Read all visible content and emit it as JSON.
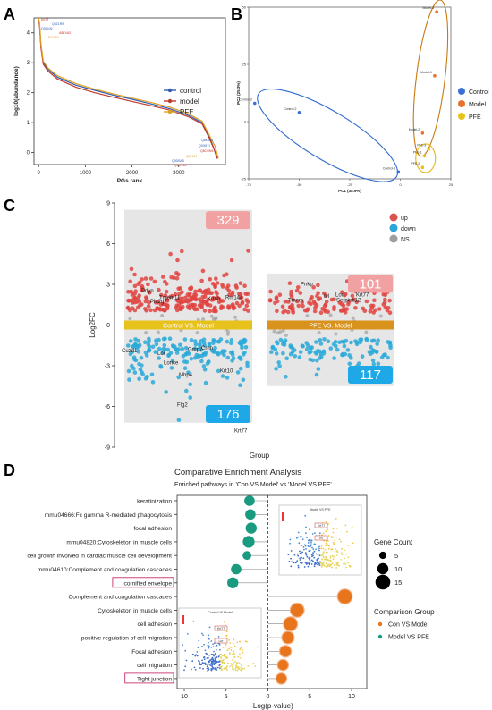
{
  "panels": {
    "A": "A",
    "B": "B",
    "C": "C",
    "D": "D"
  },
  "chart_data": [
    {
      "panel": "A",
      "type": "line",
      "title": "",
      "xlabel": "PGs rank",
      "ylabel": "log10(abundance)",
      "xlim": [
        -100,
        4000
      ],
      "ylim": [
        -0.4,
        4.5
      ],
      "x_ticks": [
        0,
        1000,
        2000,
        3000
      ],
      "y_ticks": [
        0,
        1,
        2,
        3,
        4
      ],
      "legend_position": "center-right",
      "series": [
        {
          "name": "control",
          "color": "#2f5fb3",
          "points": [
            [
              0,
              4.45
            ],
            [
              20,
              4.25
            ],
            [
              50,
              3.55
            ],
            [
              100,
              3.0
            ],
            [
              200,
              2.78
            ],
            [
              400,
              2.52
            ],
            [
              800,
              2.25
            ],
            [
              1200,
              2.08
            ],
            [
              1600,
              1.92
            ],
            [
              2000,
              1.78
            ],
            [
              2400,
              1.63
            ],
            [
              2800,
              1.47
            ],
            [
              3200,
              1.25
            ],
            [
              3500,
              1.0
            ],
            [
              3650,
              0.55
            ],
            [
              3750,
              0.15
            ],
            [
              3820,
              -0.2
            ]
          ]
        },
        {
          "name": "model",
          "color": "#c0392b",
          "points": [
            [
              0,
              4.45
            ],
            [
              20,
              4.22
            ],
            [
              50,
              3.5
            ],
            [
              100,
              2.95
            ],
            [
              200,
              2.72
            ],
            [
              400,
              2.46
            ],
            [
              800,
              2.18
            ],
            [
              1200,
              2.0
            ],
            [
              1600,
              1.85
            ],
            [
              2000,
              1.71
            ],
            [
              2400,
              1.57
            ],
            [
              2800,
              1.42
            ],
            [
              3200,
              1.2
            ],
            [
              3500,
              0.96
            ],
            [
              3650,
              0.5
            ],
            [
              3760,
              0.1
            ],
            [
              3830,
              -0.2
            ]
          ]
        },
        {
          "name": "PFE",
          "color": "#e0a020",
          "points": [
            [
              0,
              4.5
            ],
            [
              20,
              4.3
            ],
            [
              50,
              3.62
            ],
            [
              100,
              3.05
            ],
            [
              200,
              2.82
            ],
            [
              400,
              2.57
            ],
            [
              800,
              2.3
            ],
            [
              1200,
              2.12
            ],
            [
              1600,
              1.96
            ],
            [
              2000,
              1.82
            ],
            [
              2400,
              1.68
            ],
            [
              2800,
              1.52
            ],
            [
              3200,
              1.3
            ],
            [
              3500,
              1.05
            ],
            [
              3650,
              0.6
            ],
            [
              3780,
              0.2
            ],
            [
              3850,
              -0.2
            ]
          ]
        }
      ],
      "annotations_top": [
        "Krt77",
        "Q9Z1R9",
        "Q9Z0J6",
        "A8EVA3",
        "P11087"
      ],
      "annotations_bottom": [
        "Q8K4P1",
        "Q9JM71",
        "Q8CGN5",
        "Q61147",
        "Q9DBA5",
        "Q8R1M2"
      ]
    },
    {
      "panel": "B",
      "type": "scatter",
      "title": "",
      "xlabel": "PC1 (38.9%)",
      "ylabel": "PC2 (25.3%)",
      "xlim": [
        -75,
        25
      ],
      "ylim": [
        -25,
        50
      ],
      "x_ticks": [
        -75,
        -50,
        -25,
        0,
        25
      ],
      "y_ticks": [
        -25,
        0,
        25,
        50
      ],
      "legend_position": "right",
      "series": [
        {
          "name": "Control",
          "color": "#3a6fd8",
          "points": [
            {
              "label": "Control-3",
              "x": -72,
              "y": 8
            },
            {
              "label": "Control-2",
              "x": -50,
              "y": 4
            },
            {
              "label": "Control-1",
              "x": -1,
              "y": -22
            }
          ]
        },
        {
          "name": "Model",
          "color": "#e8712e",
          "points": [
            {
              "label": "Model-3",
              "x": 18,
              "y": 48
            },
            {
              "label": "Model-1",
              "x": 17,
              "y": 20
            },
            {
              "label": "Model-2",
              "x": 11,
              "y": -5
            }
          ]
        },
        {
          "name": "PFE",
          "color": "#e8c21c",
          "points": [
            {
              "label": "PFE-1",
              "x": 12,
              "y": -15
            },
            {
              "label": "PFE-3",
              "x": 14,
              "y": -12
            },
            {
              "label": "PFE-2",
              "x": 11,
              "y": -20
            }
          ]
        }
      ]
    },
    {
      "panel": "C",
      "type": "scatter",
      "title": "",
      "xlabel": "Group",
      "ylabel": "Log2FC",
      "ylim": [
        -9,
        9
      ],
      "y_ticks": [
        -9,
        -6,
        -3,
        0,
        3,
        6,
        9
      ],
      "legend_position": "top-right",
      "legend": [
        {
          "name": "up",
          "color": "#d9534f"
        },
        {
          "name": "down",
          "color": "#2ba6d6"
        },
        {
          "name": "NS",
          "color": "#9e9e9e"
        }
      ],
      "groups": [
        {
          "name": "Control VS. Model",
          "up_count": "329",
          "down_count": "176",
          "band_color": "#e8c21c",
          "y_max": 8.5,
          "y_min": -7.2
        },
        {
          "name": "PFE VS. Model",
          "up_count": "101",
          "down_count": "117",
          "band_color": "#d9921c",
          "y_max": 3.8,
          "y_min": -4.5
        }
      ],
      "labels": [
        {
          "group": 0,
          "text": "Pdyn",
          "y": 2.4
        },
        {
          "group": 0,
          "text": "Tmem11",
          "y": 1.9
        },
        {
          "group": 0,
          "text": "Pla2g7",
          "y": 1.6
        },
        {
          "group": 0,
          "text": "Krt6b",
          "y": 1.8
        },
        {
          "group": 0,
          "text": "Rnf144",
          "y": 1.9
        },
        {
          "group": 0,
          "text": "Cuzd1",
          "y": -2.0
        },
        {
          "group": 0,
          "text": "Lor",
          "y": -2.2
        },
        {
          "group": 0,
          "text": "Gmp7",
          "y": -1.9
        },
        {
          "group": 0,
          "text": "Crnn",
          "y": -1.8
        },
        {
          "group": 0,
          "text": "Krt10",
          "y": -3.5
        },
        {
          "group": 0,
          "text": "Lorice",
          "y": -2.9
        },
        {
          "group": 0,
          "text": "Mbp4",
          "y": -3.8
        },
        {
          "group": 0,
          "text": "Flg2",
          "y": -6.0
        },
        {
          "group": 0,
          "text": "Krt77",
          "y": -7.9
        },
        {
          "group": 1,
          "text": "Pnkp",
          "y": 2.9
        },
        {
          "group": 1,
          "text": "Tmem",
          "y": 1.7
        },
        {
          "group": 1,
          "text": "Ivl",
          "y": 2.0
        },
        {
          "group": 1,
          "text": "Lor",
          "y": 2.1
        },
        {
          "group": 1,
          "text": "Serpinb12",
          "y": 1.7
        },
        {
          "group": 1,
          "text": "Krt77",
          "y": 2.1
        }
      ]
    },
    {
      "panel": "D",
      "type": "scatter",
      "title": "Comparative Enrichment Analysis",
      "subtitle": "Enriched pathways in 'Con VS Model' vs 'Model VS PFE'",
      "xlabel": "-Log(p-value)",
      "xlim": [
        11,
        -10.5
      ],
      "x_ticks": [
        10,
        5,
        0,
        5,
        10
      ],
      "legend_size_title": "Gene Count",
      "legend_size_values": [
        "5",
        "10",
        "15"
      ],
      "legend_color_title": "Comparison Group",
      "legend_color_items": [
        {
          "name": "Con VS Model",
          "color": "#e8741c"
        },
        {
          "name": "Model VS PFE",
          "color": "#1a9a7f"
        }
      ],
      "inset_top_title": "Model VS PFE",
      "inset_bottom_title": "Control VS Model",
      "inset_top_labels": [
        "Krt77",
        "Ivl"
      ],
      "inset_bottom_labels": [
        "Krt77",
        "Lor"
      ],
      "terms": [
        {
          "term": "keratinization",
          "group": "Model VS PFE",
          "logp": -2.2,
          "count": 9,
          "boxed": false
        },
        {
          "term": "mmu04666:Fc gamma R-mediated phagocytosis",
          "group": "Model VS PFE",
          "logp": -2.1,
          "count": 9,
          "boxed": false
        },
        {
          "term": "focal adhesion",
          "group": "Model VS PFE",
          "logp": -2.0,
          "count": 10,
          "boxed": false
        },
        {
          "term": "mmu04820:Cytoskeleton in muscle cells",
          "group": "Model VS PFE",
          "logp": -2.3,
          "count": 11,
          "boxed": false
        },
        {
          "term": "cell growth involved in cardiac muscle cell development",
          "group": "Model VS PFE",
          "logp": -2.5,
          "count": 7,
          "boxed": false
        },
        {
          "term": "mmu04610:Complement and coagulation cascades",
          "group": "Model VS PFE",
          "logp": -3.8,
          "count": 9,
          "boxed": false
        },
        {
          "term": "cornified envelope",
          "group": "Model VS PFE",
          "logp": -4.2,
          "count": 10,
          "boxed": true
        },
        {
          "term": "Complement and coagulation cascades",
          "group": "Con VS Model",
          "logp": 9.2,
          "count": 15,
          "boxed": false
        },
        {
          "term": "Cytoskeleton in muscle cells",
          "group": "Con VS Model",
          "logp": 3.5,
          "count": 14,
          "boxed": false
        },
        {
          "term": "cell adhesion",
          "group": "Con VS Model",
          "logp": 2.7,
          "count": 14,
          "boxed": false
        },
        {
          "term": "positive regulation of cell migration",
          "group": "Con VS Model",
          "logp": 2.4,
          "count": 12,
          "boxed": false
        },
        {
          "term": "Focal adhesion",
          "group": "Con VS Model",
          "logp": 2.1,
          "count": 11,
          "boxed": false
        },
        {
          "term": "cell migration",
          "group": "Con VS Model",
          "logp": 1.8,
          "count": 10,
          "boxed": false
        },
        {
          "term": "Tight junction",
          "group": "Con VS Model",
          "logp": 1.6,
          "count": 10,
          "boxed": true
        }
      ]
    }
  ]
}
